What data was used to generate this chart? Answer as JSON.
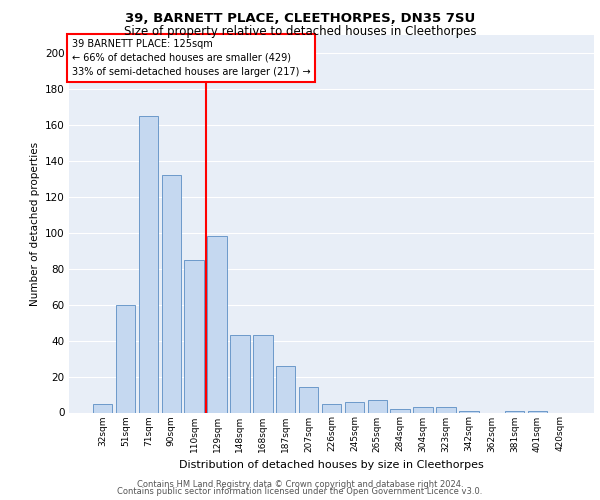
{
  "title1": "39, BARNETT PLACE, CLEETHORPES, DN35 7SU",
  "title2": "Size of property relative to detached houses in Cleethorpes",
  "xlabel": "Distribution of detached houses by size in Cleethorpes",
  "ylabel": "Number of detached properties",
  "categories": [
    "32sqm",
    "51sqm",
    "71sqm",
    "90sqm",
    "110sqm",
    "129sqm",
    "148sqm",
    "168sqm",
    "187sqm",
    "207sqm",
    "226sqm",
    "245sqm",
    "265sqm",
    "284sqm",
    "304sqm",
    "323sqm",
    "342sqm",
    "362sqm",
    "381sqm",
    "401sqm",
    "420sqm"
  ],
  "values": [
    5,
    60,
    165,
    132,
    85,
    98,
    43,
    43,
    26,
    14,
    5,
    6,
    7,
    2,
    3,
    3,
    1,
    0,
    1,
    1,
    0
  ],
  "bar_color": "#c5d8f0",
  "bar_edge_color": "#5b8ec4",
  "property_line_x": 4.5,
  "annotation_line1": "39 BARNETT PLACE: 125sqm",
  "annotation_line2": "← 66% of detached houses are smaller (429)",
  "annotation_line3": "33% of semi-detached houses are larger (217) →",
  "vline_color": "red",
  "ylim": [
    0,
    210
  ],
  "yticks": [
    0,
    20,
    40,
    60,
    80,
    100,
    120,
    140,
    160,
    180,
    200
  ],
  "background_color": "#e8eef7",
  "grid_color": "white",
  "footer1": "Contains HM Land Registry data © Crown copyright and database right 2024.",
  "footer2": "Contains public sector information licensed under the Open Government Licence v3.0."
}
